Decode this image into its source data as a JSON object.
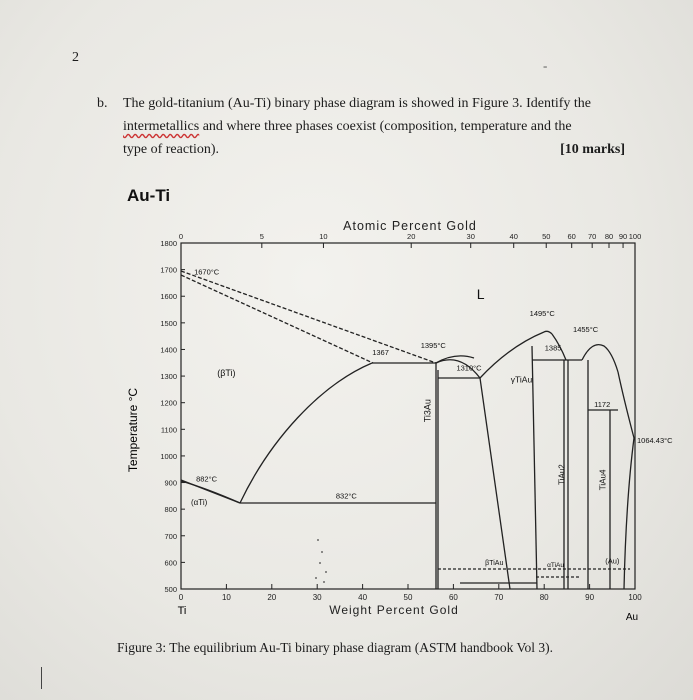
{
  "page": {
    "number": "2",
    "dash": "-"
  },
  "question": {
    "letter": "b.",
    "line1": "The gold-titanium (Au-Ti) binary phase diagram is showed in Figure 3. Identify the",
    "line2_word": "intermetallics",
    "line2_rest": "and where three phases coexist (composition, temperature and the",
    "line3": "type of reaction).",
    "marks": "[10 marks]"
  },
  "chart_data": {
    "type": "phase-diagram",
    "title": "Au-Ti",
    "top_axis_label": "Atomic Percent Gold",
    "top_ticks": [
      "0",
      "5",
      "10",
      "20",
      "30",
      "40",
      "50",
      "60",
      "70",
      "80",
      "90",
      "100"
    ],
    "xlabel": "Weight Percent Gold",
    "x_ticks": [
      0,
      10,
      20,
      30,
      40,
      50,
      60,
      70,
      80,
      90,
      100
    ],
    "x_end_labels": {
      "left": "Ti",
      "right": "Au"
    },
    "ylabel": "Temperature °C",
    "y_ticks": [
      500,
      600,
      700,
      800,
      900,
      1000,
      1100,
      1200,
      1300,
      1400,
      1500,
      1600,
      1700,
      1800
    ],
    "ylim": [
      500,
      1800
    ],
    "xlim": [
      0,
      100
    ],
    "phase_labels": [
      "L",
      "(βTi)",
      "(αTi)",
      "Ti3Au",
      "γTiAu",
      "TiAu2",
      "TiAu4",
      "βTiAu",
      "αTiAu",
      "(Au)"
    ],
    "annotations": [
      {
        "text": "1670°C",
        "x": 2,
        "y": 1670
      },
      {
        "text": "1367",
        "x": 43,
        "y": 1367
      },
      {
        "text": "1395°C",
        "x": 55,
        "y": 1395
      },
      {
        "text": "1310°C",
        "x": 62,
        "y": 1310
      },
      {
        "text": "1495°C",
        "x": 79,
        "y": 1495
      },
      {
        "text": "1455°C",
        "x": 89,
        "y": 1455
      },
      {
        "text": "1385",
        "x": 81,
        "y": 1385
      },
      {
        "text": "1172",
        "x": 91,
        "y": 1172
      },
      {
        "text": "1064.43°C",
        "x": 100,
        "y": 1064.43
      },
      {
        "text": "882°C",
        "x": 2,
        "y": 882
      },
      {
        "text": "832°C",
        "x": 35,
        "y": 832
      }
    ]
  },
  "caption": "Figure 3: The equilibrium Au-Ti binary phase diagram (ASTM handbook Vol 3)."
}
